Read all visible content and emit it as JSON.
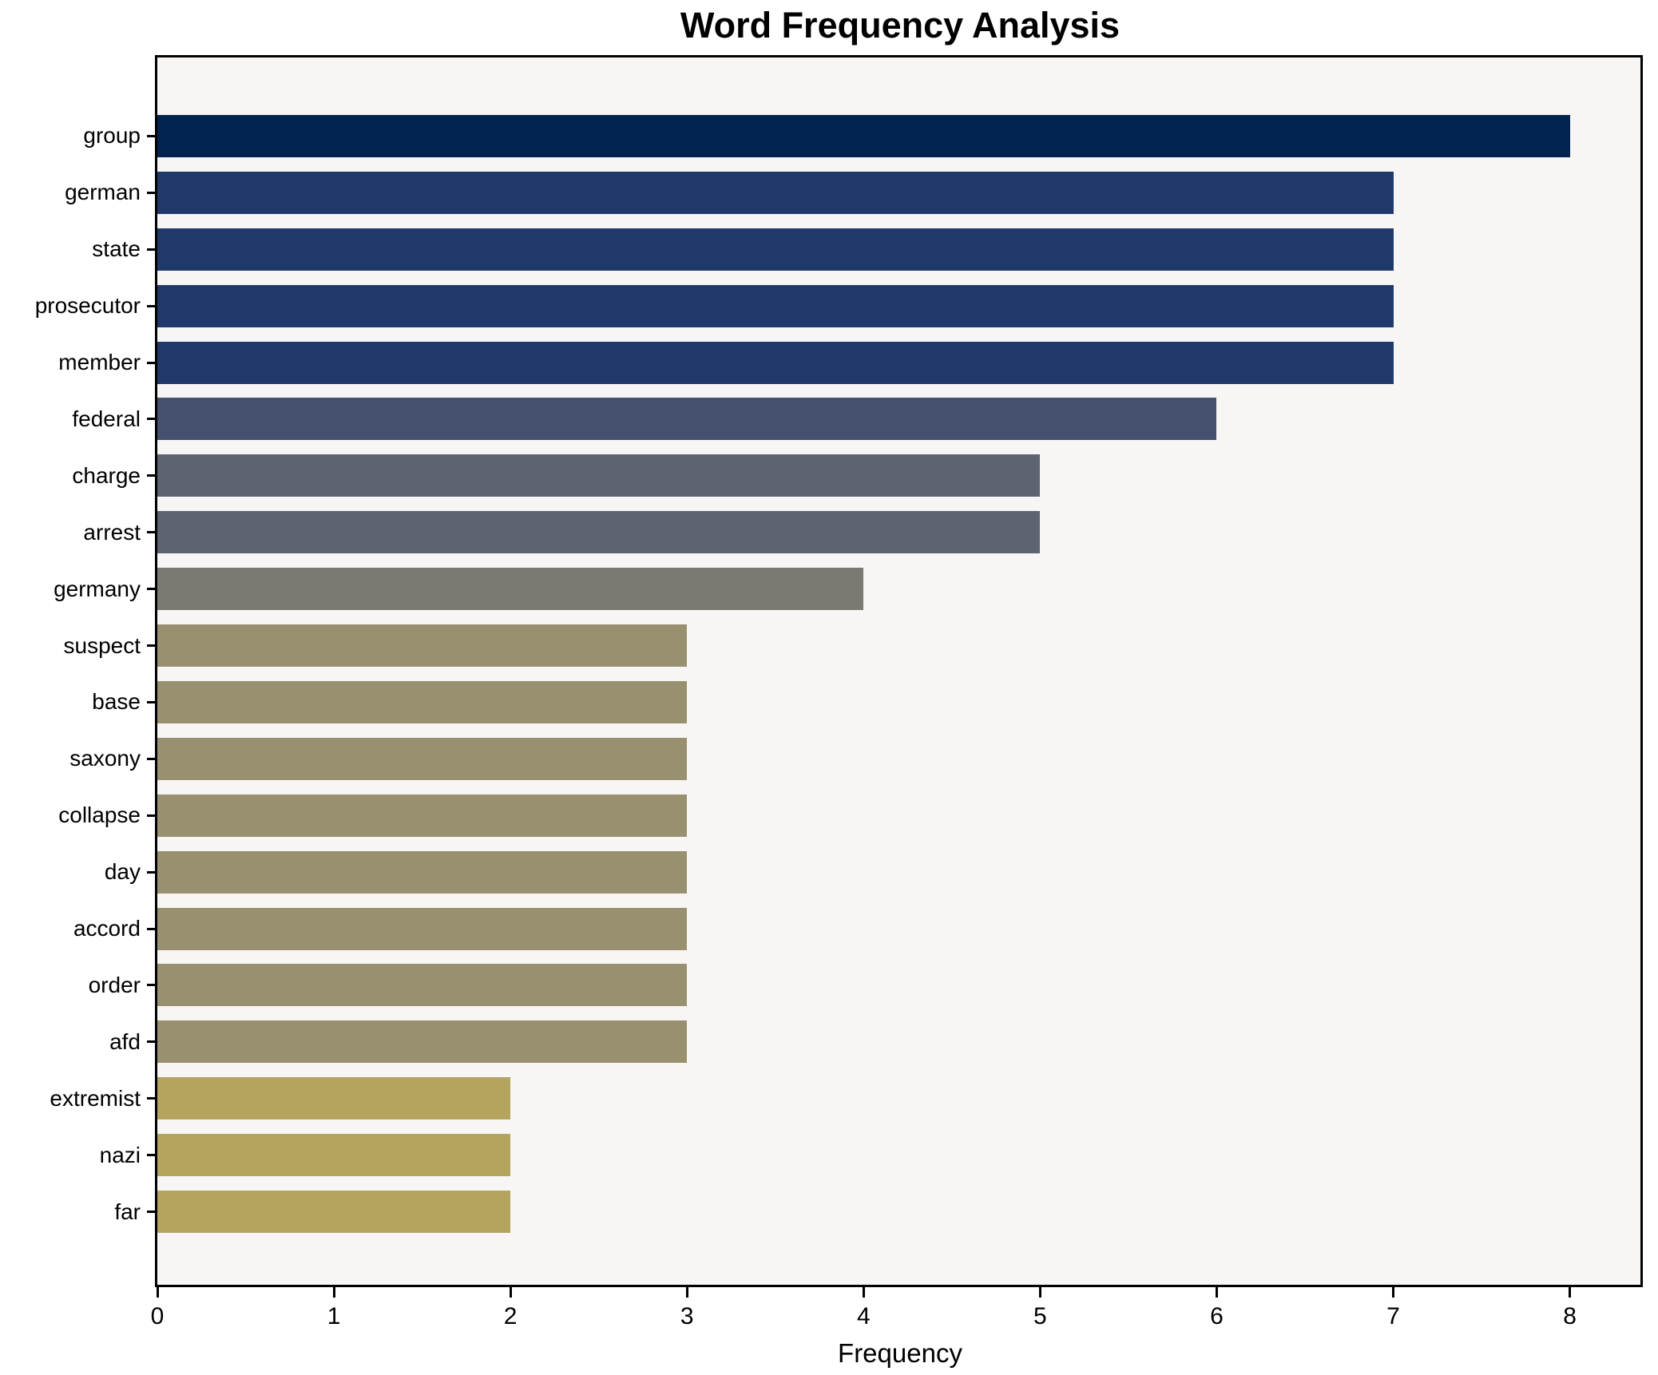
{
  "chart_data": {
    "type": "bar",
    "orientation": "horizontal",
    "title": "Word Frequency Analysis",
    "xlabel": "Frequency",
    "ylabel": "",
    "categories": [
      "group",
      "german",
      "state",
      "prosecutor",
      "member",
      "federal",
      "charge",
      "arrest",
      "germany",
      "suspect",
      "base",
      "saxony",
      "collapse",
      "day",
      "accord",
      "order",
      "afd",
      "extremist",
      "nazi",
      "far"
    ],
    "values": [
      8,
      7,
      7,
      7,
      7,
      6,
      5,
      5,
      4,
      3,
      3,
      3,
      3,
      3,
      3,
      3,
      3,
      2,
      2,
      2
    ],
    "xlim": [
      0,
      8.4
    ],
    "xticks": [
      "0",
      "1",
      "2",
      "3",
      "4",
      "5",
      "6",
      "7",
      "8"
    ],
    "grid": false,
    "legend": null,
    "colors_by_value": {
      "8": "#02234e",
      "7": "#20396b",
      "6": "#45506e",
      "5": "#5d6370",
      "4": "#7a7a72",
      "3": "#98906e",
      "2": "#b5a45e"
    },
    "plot_background": "#f7f6f5",
    "figure_background": "#ffffff",
    "spine_color": "#000000"
  }
}
